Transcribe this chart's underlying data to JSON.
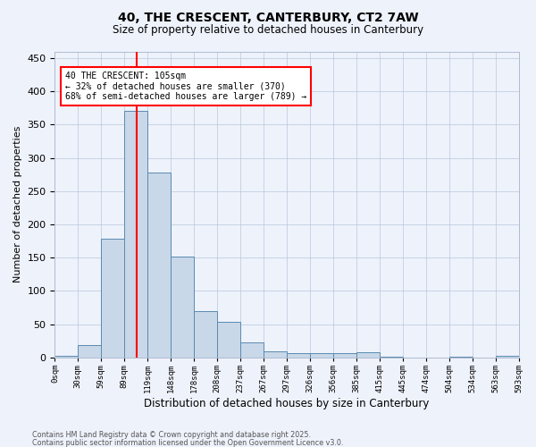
{
  "title_line1": "40, THE CRESCENT, CANTERBURY, CT2 7AW",
  "title_line2": "Size of property relative to detached houses in Canterbury",
  "xlabel": "Distribution of detached houses by size in Canterbury",
  "ylabel": "Number of detached properties",
  "bin_labels": [
    "0sqm",
    "30sqm",
    "59sqm",
    "89sqm",
    "119sqm",
    "148sqm",
    "178sqm",
    "208sqm",
    "237sqm",
    "267sqm",
    "297sqm",
    "326sqm",
    "356sqm",
    "385sqm",
    "415sqm",
    "445sqm",
    "474sqm",
    "504sqm",
    "534sqm",
    "563sqm",
    "593sqm"
  ],
  "bar_values": [
    2,
    18,
    178,
    370,
    278,
    152,
    70,
    53,
    23,
    9,
    6,
    6,
    6,
    8,
    1,
    0,
    0,
    1,
    0,
    3
  ],
  "bar_color": "#c8d8e8",
  "bar_edge_color": "#5a8ab0",
  "property_sqm": 105,
  "vline_color": "red",
  "ylim": [
    0,
    460
  ],
  "yticks": [
    0,
    50,
    100,
    150,
    200,
    250,
    300,
    350,
    400,
    450
  ],
  "annotation_text": "40 THE CRESCENT: 105sqm\n← 32% of detached houses are smaller (370)\n68% of semi-detached houses are larger (789) →",
  "annotation_box_facecolor": "white",
  "annotation_box_edgecolor": "red",
  "footer_line1": "Contains HM Land Registry data © Crown copyright and database right 2025.",
  "footer_line2": "Contains public sector information licensed under the Open Government Licence v3.0.",
  "background_color": "#eef2fb"
}
